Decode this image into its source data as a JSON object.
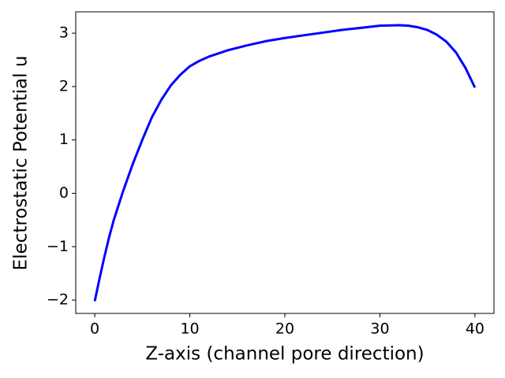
{
  "chart_data": {
    "type": "line",
    "xlabel": "Z-axis (channel pore direction)",
    "ylabel": "Electrostatic Potential u",
    "x": [
      0,
      0.5,
      1,
      1.5,
      2,
      3,
      4,
      5,
      6,
      7,
      8,
      9,
      10,
      11,
      12,
      14,
      16,
      18,
      20,
      22,
      24,
      26,
      28,
      30,
      32,
      33,
      34,
      35,
      36,
      37,
      38,
      39,
      40
    ],
    "series": [
      {
        "color": "#0000ff",
        "values": [
          -2.02,
          -1.6,
          -1.2,
          -0.83,
          -0.5,
          0.05,
          0.55,
          1.0,
          1.42,
          1.75,
          2.02,
          2.22,
          2.38,
          2.48,
          2.56,
          2.68,
          2.77,
          2.85,
          2.91,
          2.96,
          3.01,
          3.06,
          3.1,
          3.14,
          3.15,
          3.14,
          3.11,
          3.06,
          2.97,
          2.84,
          2.64,
          2.35,
          1.98
        ]
      }
    ],
    "xlim": [
      -2,
      42
    ],
    "ylim": [
      -2.25,
      3.4
    ],
    "xticks": [
      0,
      10,
      20,
      30,
      40
    ],
    "yticks": [
      {
        "value": -2,
        "label": "−2"
      },
      {
        "value": -1,
        "label": "−1"
      },
      0,
      1,
      2,
      3
    ]
  }
}
